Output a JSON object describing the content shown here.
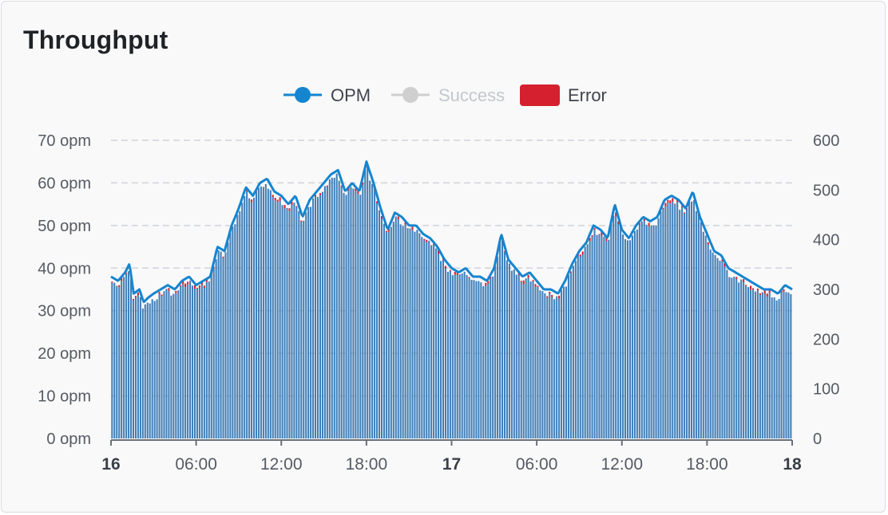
{
  "panel": {
    "title": "Throughput"
  },
  "colors": {
    "opm": "#1585cf",
    "success": "#cfcfcf",
    "error": "#d4202f",
    "bar": "#3f7fb9",
    "grid": "#cfd3da",
    "axis_text": "#555a63",
    "legend_inactive": "#c3c7cd"
  },
  "legend": [
    {
      "name": "OPM",
      "color": "#1585cf",
      "active": true,
      "symbol": "line-circle"
    },
    {
      "name": "Success",
      "color": "#cfcfcf",
      "active": false,
      "symbol": "line-circle"
    },
    {
      "name": "Error",
      "color": "#d4202f",
      "active": true,
      "symbol": "rect"
    }
  ],
  "chart_data": {
    "type": "bar",
    "title": "Throughput",
    "x_ticks": [
      {
        "label": "16",
        "bold": true,
        "t": 0
      },
      {
        "label": "06:00",
        "bold": false,
        "t": 6
      },
      {
        "label": "12:00",
        "bold": false,
        "t": 12
      },
      {
        "label": "18:00",
        "bold": false,
        "t": 18
      },
      {
        "label": "17",
        "bold": true,
        "t": 24
      },
      {
        "label": "06:00",
        "bold": false,
        "t": 30
      },
      {
        "label": "12:00",
        "bold": false,
        "t": 36
      },
      {
        "label": "18:00",
        "bold": false,
        "t": 42
      },
      {
        "label": "18",
        "bold": true,
        "t": 48
      }
    ],
    "x_range_hours": [
      0,
      48
    ],
    "y_left": {
      "ticks": [
        "0 opm",
        "10 opm",
        "20 opm",
        "30 opm",
        "40 opm",
        "50 opm",
        "60 opm",
        "70 opm"
      ],
      "range": [
        0,
        70
      ]
    },
    "y_right": {
      "ticks": [
        "0",
        "100",
        "200",
        "300",
        "400",
        "500",
        "600"
      ],
      "range": [
        0,
        600
      ]
    },
    "grid": true,
    "legend_position": "top-center",
    "series": [
      {
        "name": "OPM",
        "type": "line",
        "axis": "left",
        "points": [
          [
            0,
            38
          ],
          [
            0.5,
            37
          ],
          [
            1,
            39
          ],
          [
            1.3,
            41
          ],
          [
            1.6,
            34
          ],
          [
            2,
            35
          ],
          [
            2.3,
            32
          ],
          [
            2.6,
            33
          ],
          [
            3,
            34
          ],
          [
            3.5,
            35
          ],
          [
            4,
            36
          ],
          [
            4.5,
            35
          ],
          [
            5,
            37
          ],
          [
            5.5,
            38
          ],
          [
            6,
            36
          ],
          [
            6.5,
            37
          ],
          [
            7,
            38
          ],
          [
            7.5,
            45
          ],
          [
            8,
            44
          ],
          [
            8.5,
            50
          ],
          [
            9,
            54
          ],
          [
            9.5,
            59
          ],
          [
            10,
            57
          ],
          [
            10.5,
            60
          ],
          [
            11,
            61
          ],
          [
            11.5,
            58
          ],
          [
            12,
            57
          ],
          [
            12.5,
            55
          ],
          [
            13,
            57
          ],
          [
            13.5,
            52
          ],
          [
            14,
            56
          ],
          [
            14.5,
            58
          ],
          [
            15,
            60
          ],
          [
            15.5,
            62
          ],
          [
            16,
            63
          ],
          [
            16.5,
            58
          ],
          [
            17,
            60
          ],
          [
            17.5,
            58
          ],
          [
            18,
            65
          ],
          [
            18.5,
            60
          ],
          [
            19,
            54
          ],
          [
            19.5,
            49
          ],
          [
            20,
            53
          ],
          [
            20.5,
            52
          ],
          [
            21,
            50
          ],
          [
            21.5,
            50
          ],
          [
            22,
            48
          ],
          [
            22.5,
            47
          ],
          [
            23,
            45
          ],
          [
            23.5,
            42
          ],
          [
            24,
            40
          ],
          [
            24.5,
            39
          ],
          [
            25,
            40
          ],
          [
            25.5,
            38
          ],
          [
            26,
            38
          ],
          [
            26.5,
            37
          ],
          [
            27,
            40
          ],
          [
            27.5,
            48
          ],
          [
            28,
            42
          ],
          [
            28.5,
            40
          ],
          [
            29,
            38
          ],
          [
            29.5,
            39
          ],
          [
            30,
            37
          ],
          [
            30.5,
            35
          ],
          [
            31,
            35
          ],
          [
            31.5,
            34
          ],
          [
            32,
            37
          ],
          [
            32.5,
            41
          ],
          [
            33,
            44
          ],
          [
            33.5,
            46
          ],
          [
            34,
            50
          ],
          [
            34.5,
            49
          ],
          [
            35,
            47
          ],
          [
            35.5,
            55
          ],
          [
            36,
            49
          ],
          [
            36.5,
            47
          ],
          [
            37,
            50
          ],
          [
            37.5,
            52
          ],
          [
            38,
            51
          ],
          [
            38.5,
            52
          ],
          [
            39,
            56
          ],
          [
            39.5,
            57
          ],
          [
            40,
            56
          ],
          [
            40.5,
            54
          ],
          [
            41,
            58
          ],
          [
            41.5,
            52
          ],
          [
            42,
            48
          ],
          [
            42.5,
            44
          ],
          [
            43,
            43
          ],
          [
            43.5,
            40
          ],
          [
            44,
            39
          ],
          [
            44.5,
            38
          ],
          [
            45,
            37
          ],
          [
            45.5,
            36
          ],
          [
            46,
            35
          ],
          [
            46.5,
            35
          ],
          [
            47,
            34
          ],
          [
            47.5,
            36
          ],
          [
            48,
            35
          ]
        ]
      },
      {
        "name": "Success",
        "type": "line",
        "axis": "left",
        "hidden": true,
        "points": []
      },
      {
        "name": "Error",
        "type": "bar",
        "axis": "right",
        "description_values": "small red caps on top of bars, roughly 0-10 per bucket"
      }
    ]
  }
}
